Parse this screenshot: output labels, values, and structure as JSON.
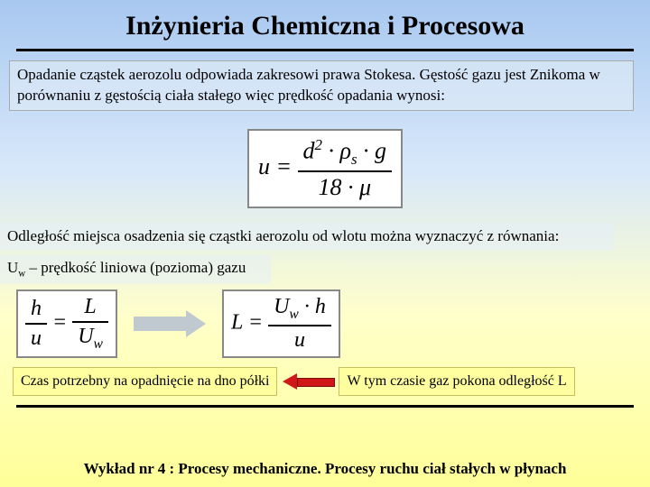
{
  "title": "Inżynieria Chemiczna i Procesowa",
  "para1": "Opadanie cząstek aerozolu odpowiada zakresowi prawa Stokesa. Gęstość gazu jest Znikoma w porównaniu z gęstością ciała stałego więc prędkość opadania wynosi:",
  "eq1": {
    "lhs": "u",
    "num_a": "d",
    "num_exp": "2",
    "num_b": "ρ",
    "num_bsub": "s",
    "num_c": "g",
    "den_a": "18",
    "den_b": "μ"
  },
  "para2": "Odległość miejsca osadzenia się cząstki aerozolu od wlotu można wyznaczyć z równania:",
  "para3_a": "U",
  "para3_sub": "w",
  "para3_b": " – prędkość liniowa (pozioma) gazu",
  "eq2": {
    "n1a": "h",
    "d1a": "u",
    "n1b": "L",
    "d1b_a": "U",
    "d1b_sub": "w"
  },
  "eq3": {
    "lhs": "L",
    "num_a": "U",
    "num_sub": "w",
    "num_b": "h",
    "den": "u"
  },
  "ybox1": "Czas potrzebny na opadnięcie na dno półki",
  "ybox2": "W tym czasie gaz pokona odległość L",
  "footer": "Wykład nr 4  : Procesy mechaniczne.  Procesy ruchu ciał stałych w płynach"
}
